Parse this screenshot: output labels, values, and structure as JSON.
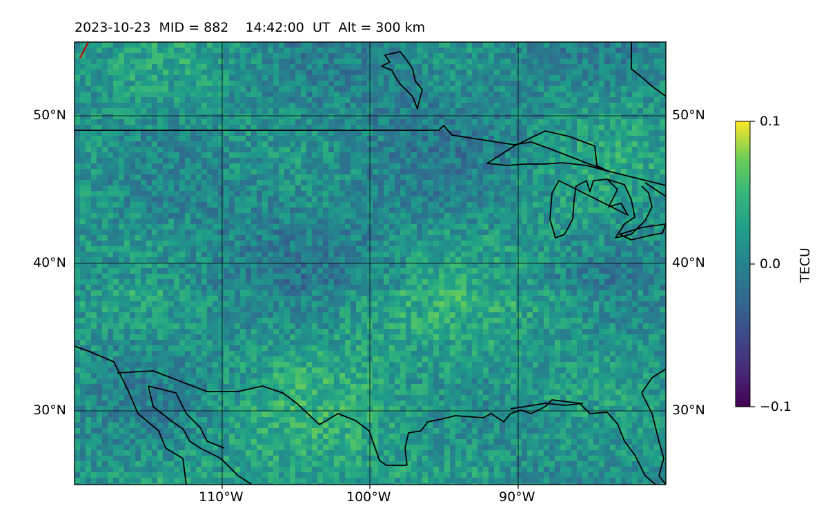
{
  "title": "2023-10-23  MID = 882    14:42:00  UT  Alt = 300 km",
  "map": {
    "lon_range": [
      -120,
      -80
    ],
    "lat_range": [
      25,
      55
    ],
    "lon_ticks": [
      {
        "value": -110,
        "label": "110°W"
      },
      {
        "value": -100,
        "label": "100°W"
      },
      {
        "value": -90,
        "label": "90°W"
      }
    ],
    "lat_ticks": [
      {
        "value": 50,
        "label": "50°N"
      },
      {
        "value": 40,
        "label": "40°N"
      },
      {
        "value": 30,
        "label": "30°N"
      }
    ],
    "gridlines": true,
    "colormap": "viridis",
    "coastlines_color": "#000000",
    "terminator_color": "#cc0000"
  },
  "colorbar": {
    "label": "TECU",
    "min": -0.1,
    "max": 0.1,
    "ticks": [
      {
        "value": 0.1,
        "label": "0.1"
      },
      {
        "value": 0.0,
        "label": "0.0"
      },
      {
        "value": -0.1,
        "label": "−0.1"
      }
    ]
  }
}
